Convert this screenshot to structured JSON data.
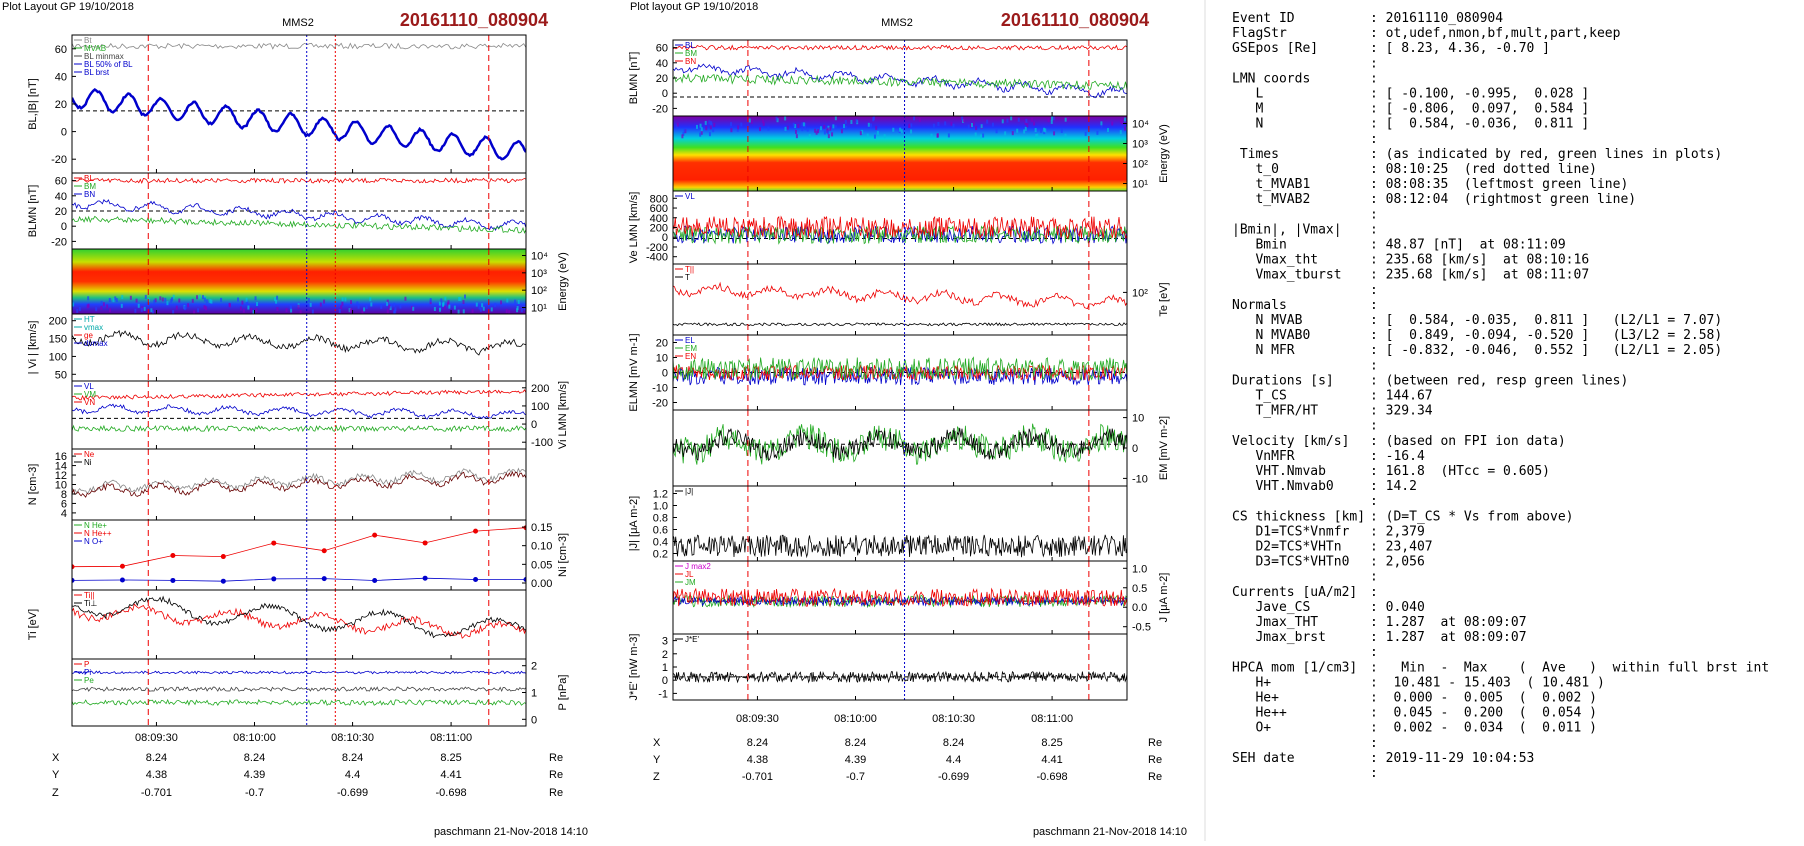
{
  "left_plot": {
    "header": "Plot Layout GP 19/10/2018",
    "spacecraft": "MMS2",
    "event": "20161110_080904",
    "footer": "paschmann 21-Nov-2018 14:10",
    "xticks": [
      "08:09:30",
      "08:10:00",
      "08:10:30",
      "08:11:00"
    ],
    "coords": [
      {
        "label": "X",
        "values": [
          "8.24",
          "8.24",
          "8.24",
          "8.25"
        ],
        "unit": "Re"
      },
      {
        "label": "Y",
        "values": [
          "4.38",
          "4.39",
          "4.4",
          "4.41"
        ],
        "unit": "Re"
      },
      {
        "label": "Z",
        "values": [
          "-0.701",
          "-0.7",
          "-0.699",
          "-0.698"
        ],
        "unit": "Re"
      }
    ],
    "panels": [
      {
        "ylabel": "BL,|B| [nT]",
        "yticks": [
          "60",
          "40",
          "20",
          "0",
          "-20"
        ],
        "legend": [
          "Bt",
          "MVAB",
          "BL minmax",
          "BL 50% of BL",
          "BL brst"
        ]
      },
      {
        "ylabel": "BLMN [nT]",
        "yticks": [
          "60",
          "40",
          "20",
          "0",
          "-20"
        ],
        "legend": [
          "BL",
          "BM",
          "BN"
        ]
      },
      {
        "ylabel": "Energy (eV)",
        "yticks": [
          "10⁴",
          "10³",
          "10²",
          "10¹"
        ]
      },
      {
        "ylabel": "| Vi | [km/s]",
        "yticks": [
          "200",
          "150",
          "100",
          "50"
        ],
        "legend": [
          "HT",
          "vmax",
          "ge",
          "dvmax"
        ]
      },
      {
        "ylabel": "Vi LMN [km/s]",
        "yticks": [
          "200",
          "100",
          "0",
          "-100"
        ],
        "legend": [
          "VL",
          "VM",
          "VN"
        ]
      },
      {
        "ylabel": "N [cm-3]",
        "yticks": [
          "16",
          "14",
          "12",
          "10",
          "8",
          "6",
          "4"
        ],
        "legend": [
          "Ne",
          "Ni"
        ]
      },
      {
        "ylabel": "Ni [cm-3]",
        "yticks": [
          "0.15",
          "0.10",
          "0.05",
          "0.00"
        ],
        "legend": [
          "N He+",
          "N He++",
          "N O+"
        ]
      },
      {
        "ylabel": "Ti [eV]",
        "yticks": [],
        "legend": [
          "Ti||",
          "Ti⊥"
        ]
      },
      {
        "ylabel": "P [nPa]",
        "yticks": [
          "2",
          "1",
          "0"
        ],
        "legend": [
          "P",
          "Pi",
          "Pe"
        ]
      }
    ]
  },
  "right_plot": {
    "header": "Plot layout GP 19/10/2018",
    "spacecraft": "MMS2",
    "event": "20161110_080904",
    "footer": "paschmann 21-Nov-2018 14:10",
    "xticks": [
      "08:09:30",
      "08:10:00",
      "08:10:30",
      "08:11:00"
    ],
    "coords": [
      {
        "label": "X",
        "values": [
          "8.24",
          "8.24",
          "8.24",
          "8.25"
        ],
        "unit": "Re"
      },
      {
        "label": "Y",
        "values": [
          "4.38",
          "4.39",
          "4.4",
          "4.41"
        ],
        "unit": "Re"
      },
      {
        "label": "Z",
        "values": [
          "-0.701",
          "-0.7",
          "-0.699",
          "-0.698"
        ],
        "unit": "Re"
      }
    ],
    "panels": [
      {
        "ylabel": "BLMN [nT]",
        "yticks": [
          "60",
          "40",
          "20",
          "0",
          "-20"
        ],
        "legend": [
          "BL",
          "BM",
          "BN"
        ]
      },
      {
        "ylabel": "Energy (eV)",
        "yticks": [
          "10⁴",
          "10³",
          "10²",
          "10¹"
        ]
      },
      {
        "ylabel": "Ve LMN [km/s]",
        "yticks": [
          "800",
          "600",
          "400",
          "200",
          "0",
          "-200",
          "-400"
        ],
        "legend": [
          "VL"
        ]
      },
      {
        "ylabel": "Te [eV]",
        "yticks": [
          "10²"
        ],
        "legend": [
          "T||",
          "T"
        ]
      },
      {
        "ylabel": "ELMN [mV m-1]",
        "yticks": [
          "20",
          "10",
          "0",
          "-10",
          "-20"
        ],
        "legend": [
          "EL",
          "EM",
          "EN"
        ]
      },
      {
        "ylabel": "EM [mV m-2]",
        "yticks": [
          "10",
          "0",
          "-10"
        ]
      },
      {
        "ylabel": "|J| [μA m-2]",
        "yticks": [
          "1.2",
          "1.0",
          "0.8",
          "0.6",
          "0.4",
          "0.2"
        ],
        "legend": [
          "|J|"
        ]
      },
      {
        "ylabel": "J [μA m-2]",
        "yticks": [
          "1.0",
          "0.5",
          "0.0",
          "-0.5"
        ],
        "legend": [
          "J max2",
          "JL",
          "JM"
        ]
      },
      {
        "ylabel": "J*E' [nW m-3]",
        "yticks": [
          "3",
          "2",
          "1",
          "0",
          "-1"
        ],
        "legend": [
          "J*E'"
        ]
      }
    ]
  },
  "summary": {
    "lines": [
      {
        "key": "Event ID",
        "value": ": 20161110_080904"
      },
      {
        "key": "FlagStr",
        "value": ": ot,udef,nmon,bf,mult,part,keep"
      },
      {
        "key": "GSEpos [Re]",
        "value": ": [ 8.23, 4.36, -0.70 ]"
      },
      {
        "value": ":"
      },
      {
        "key": "LMN coords",
        "value": ":"
      },
      {
        "key": "   L",
        "value": ": [ -0.100, -0.995,  0.028 ]"
      },
      {
        "key": "   M",
        "value": ": [ -0.806,  0.097,  0.584 ]"
      },
      {
        "key": "   N",
        "value": ": [  0.584, -0.036,  0.811 ]"
      },
      {
        "value": ":"
      },
      {
        "key": " Times",
        "value": ": (as indicated by red, green lines in plots)"
      },
      {
        "key": "   t_0",
        "value": ": 08:10:25  (red dotted line)"
      },
      {
        "key": "   t_MVAB1",
        "value": ": 08:08:35  (leftmost green line)"
      },
      {
        "key": "   t_MVAB2",
        "value": ": 08:12:04  (rightmost green line)"
      },
      {
        "value": ":"
      },
      {
        "key": "|Bmin|, |Vmax|",
        "value": ":"
      },
      {
        "key": "   Bmin",
        "value": ": 48.87 [nT]  at 08:11:09"
      },
      {
        "key": "   Vmax_tht",
        "value": ": 235.68 [km/s]  at 08:10:16"
      },
      {
        "key": "   Vmax_tburst",
        "value": ": 235.68 [km/s]  at 08:11:07"
      },
      {
        "value": ":"
      },
      {
        "key": "Normals",
        "value": ":"
      },
      {
        "key": "   N MVAB",
        "value": ": [  0.584, -0.035,  0.811 ]   (L2/L1 = 7.07)"
      },
      {
        "key": "   N MVAB0",
        "value": ": [  0.849, -0.094, -0.520 ]   (L3/L2 = 2.58)"
      },
      {
        "key": "   N MFR",
        "value": ": [ -0.832, -0.046,  0.552 ]   (L2/L1 = 2.05)"
      },
      {
        "value": ":"
      },
      {
        "key": "Durations [s]",
        "value": ": (between red, resp green lines)"
      },
      {
        "key": "   T_CS",
        "value": ": 144.67"
      },
      {
        "key": "   T_MFR/HT",
        "value": ": 329.34"
      },
      {
        "value": ":"
      },
      {
        "key": "Velocity [km/s]",
        "value": ": (based on FPI ion data)"
      },
      {
        "key": "   VnMFR",
        "value": ": -16.4"
      },
      {
        "key": "   VHT.Nmvab",
        "value": ": 161.8  (HTcc = 0.605)"
      },
      {
        "key": "   VHT.Nmvab0",
        "value": ": 14.2"
      },
      {
        "value": ":"
      },
      {
        "key": "CS thickness [km]",
        "value": ": (D=T_CS * Vs from above)"
      },
      {
        "key": "   D1=TCS*Vnmfr",
        "value": ": 2,379"
      },
      {
        "key": "   D2=TCS*VHTn",
        "value": ": 23,407"
      },
      {
        "key": "   D3=TCS*VHTn0",
        "value": ": 2,056"
      },
      {
        "value": ":"
      },
      {
        "key": "Currents [uA/m2]",
        "value": ":"
      },
      {
        "key": "   Jave_CS",
        "value": ": 0.040"
      },
      {
        "key": "   Jmax_THT",
        "value": ": 1.287  at 08:09:07"
      },
      {
        "key": "   Jmax_brst",
        "value": ": 1.287  at 08:09:07"
      },
      {
        "value": ":"
      },
      {
        "key": "HPCA mom [1/cm3]",
        "value": ":   Min  -  Max    (  Ave   )  within full brst int"
      },
      {
        "key": "   H+",
        "value": ":  10.481 - 15.403  ( 10.481 )"
      },
      {
        "key": "   He+",
        "value": ":  0.000 -  0.005  (  0.002 )"
      },
      {
        "key": "   He++",
        "value": ":  0.045 -  0.200  (  0.054 )"
      },
      {
        "key": "   O+",
        "value": ":  0.002 -  0.034  (  0.011 )"
      },
      {
        "value": ":"
      },
      {
        "key": "SEH date",
        "value": ": 2019-11-29 10:04:53"
      },
      {
        "value": ":"
      }
    ]
  }
}
